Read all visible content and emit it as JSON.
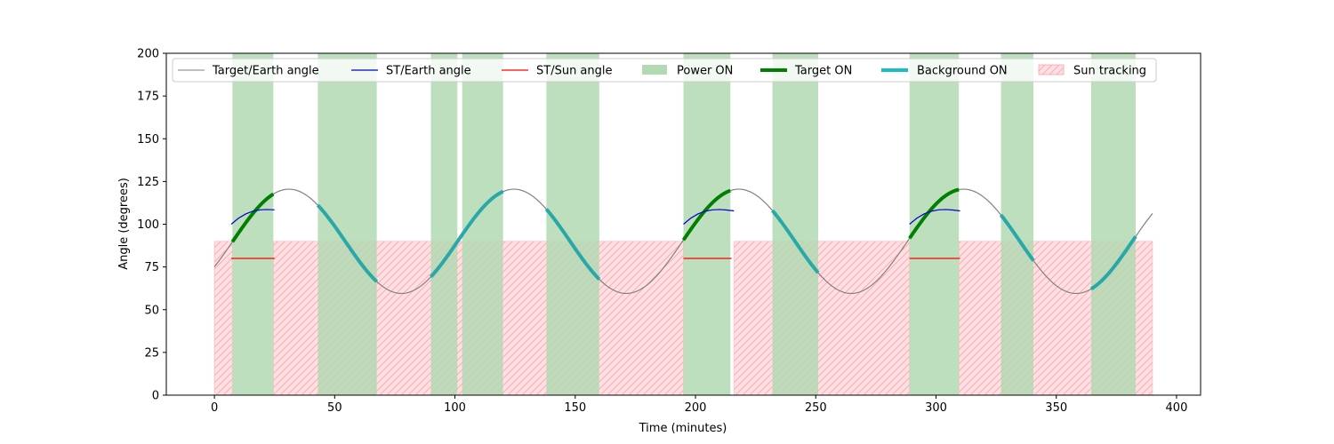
{
  "chart_data": {
    "type": "line",
    "title": "",
    "xlabel": "Time (minutes)",
    "ylabel": "Angle (degrees)",
    "xlim": [
      -20,
      410
    ],
    "ylim": [
      0,
      200
    ],
    "xticks": [
      0,
      50,
      100,
      150,
      200,
      250,
      300,
      350,
      400
    ],
    "yticks": [
      0,
      25,
      50,
      75,
      100,
      125,
      150,
      175,
      200
    ],
    "grid": false,
    "legend_placement": "top, inside axes, single row",
    "colors": {
      "target_earth": "#808080",
      "st_earth": "#0000cc",
      "st_sun": "#ff0000",
      "power_on": "#b3d9b3",
      "target_on": "#008000",
      "background_on": "#2aa7a7",
      "sun_tracking_fill": "#ffdfe2",
      "sun_tracking_hatch": "#f4a7ad"
    },
    "target_earth": {
      "name": "Target/Earth angle",
      "x_range": [
        0,
        390
      ],
      "mean": 90,
      "amplitude": 30.5,
      "period": 93.5,
      "peak_at": 31
    },
    "st_earth": {
      "name": "ST/Earth angle",
      "segments": [
        {
          "x": [
            7,
            10,
            13,
            16,
            19,
            22,
            25
          ],
          "y": [
            100,
            103.5,
            106,
            107.6,
            108.4,
            108.6,
            108.4
          ]
        },
        {
          "x": [
            195,
            198,
            201,
            204,
            207,
            210,
            213,
            216
          ],
          "y": [
            100,
            103.5,
            106,
            107.6,
            108.4,
            108.6,
            108.3,
            107.8
          ]
        },
        {
          "x": [
            289,
            292,
            295,
            298,
            301,
            304,
            307,
            310
          ],
          "y": [
            100,
            103.5,
            106,
            107.6,
            108.4,
            108.6,
            108.3,
            107.8
          ]
        }
      ]
    },
    "st_sun": {
      "name": "ST/Sun angle",
      "segments": [
        {
          "x": [
            7,
            25
          ],
          "y": [
            80,
            80
          ]
        },
        {
          "x": [
            195,
            215
          ],
          "y": [
            80,
            80
          ]
        },
        {
          "x": [
            289,
            310
          ],
          "y": [
            80,
            80
          ]
        }
      ]
    },
    "power_on": {
      "name": "Power ON",
      "intervals": [
        [
          7.5,
          24.5
        ],
        [
          43,
          67.5
        ],
        [
          90,
          101
        ],
        [
          103,
          120
        ],
        [
          138,
          160
        ],
        [
          195,
          214.5
        ],
        [
          232,
          251
        ],
        [
          289,
          309.5
        ],
        [
          327,
          340.5
        ],
        [
          364.5,
          383
        ]
      ]
    },
    "target_on": {
      "name": "Target ON",
      "intervals": [
        [
          7.5,
          24.5
        ],
        [
          195,
          214.5
        ],
        [
          289,
          309.5
        ]
      ]
    },
    "background_on": {
      "name": "Background ON",
      "intervals": [
        [
          43,
          67.5
        ],
        [
          90,
          120
        ],
        [
          138,
          160
        ],
        [
          232,
          251
        ],
        [
          327,
          340.5
        ],
        [
          364.5,
          383
        ]
      ]
    },
    "sun_tracking": {
      "name": "Sun tracking",
      "height": 90,
      "intervals": [
        [
          0,
          7.5
        ],
        [
          24.5,
          195
        ],
        [
          216,
          289
        ],
        [
          309.5,
          390
        ]
      ]
    }
  }
}
